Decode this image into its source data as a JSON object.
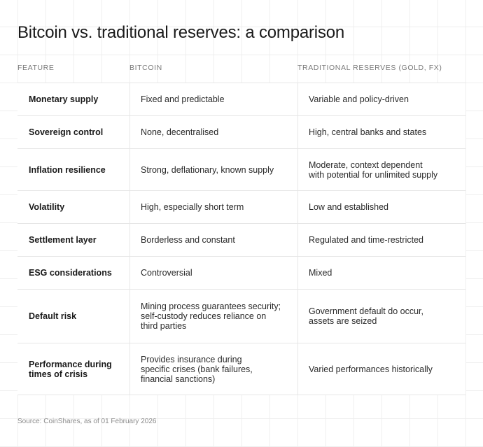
{
  "title": "Bitcoin vs. traditional reserves: a comparison",
  "headers": {
    "feature": "FEATURE",
    "bitcoin": "BITCOIN",
    "traditional": "TRADITIONAL RESERVES (GOLD, FX)"
  },
  "rows": [
    {
      "feature": "Monetary supply",
      "bitcoin": "Fixed and predictable",
      "traditional": "Variable and policy-driven"
    },
    {
      "feature": "Sovereign control",
      "bitcoin": "None, decentralised",
      "traditional": "High, central banks and states"
    },
    {
      "feature": "Inflation resilience",
      "bitcoin": "Strong, deflationary, known supply",
      "traditional": "Moderate, context dependent\nwith potential for unlimited supply"
    },
    {
      "feature": "Volatility",
      "bitcoin": "High, especially short term",
      "traditional": "Low and established"
    },
    {
      "feature": "Settlement layer",
      "bitcoin": "Borderless and constant",
      "traditional": "Regulated and time-restricted"
    },
    {
      "feature": "ESG considerations",
      "bitcoin": "Controversial",
      "traditional": "Mixed"
    },
    {
      "feature": "Default risk",
      "bitcoin": "Mining process guarantees security;\nself-custody reduces reliance on\nthird parties",
      "traditional": "Government default do occur,\nassets are seized"
    },
    {
      "feature": "Performance during\ntimes of crisis",
      "bitcoin": "Provides insurance during\nspecific crises (bank failures,\nfinancial sanctions)",
      "traditional": "Varied performances historically"
    }
  ],
  "source": "Source: CoinShares, as of 01 February 2026"
}
